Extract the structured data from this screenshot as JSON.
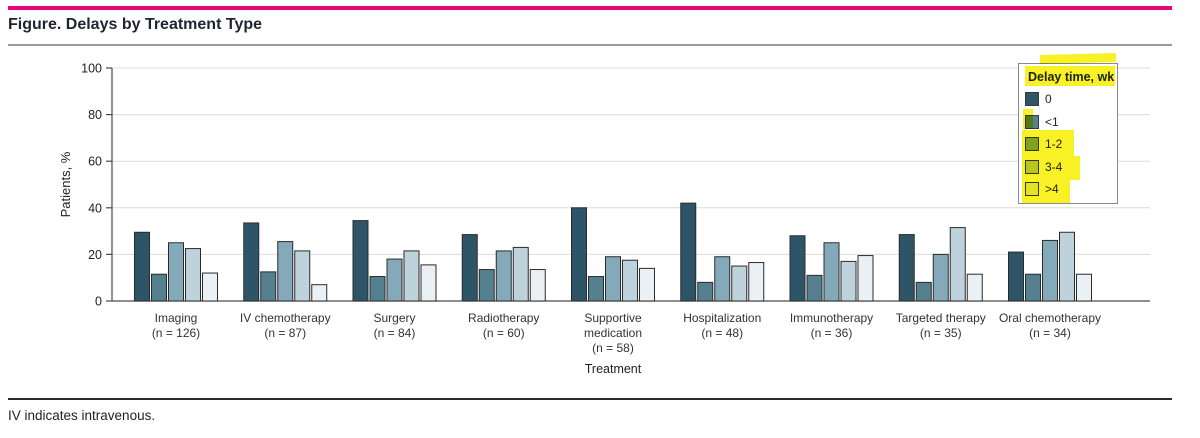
{
  "header": {
    "title": "Figure. Delays by Treatment Type"
  },
  "footer": {
    "note": "IV indicates intravenous."
  },
  "colors": {
    "accent_bar": "#E6077E",
    "bar_border": "#2B2B2B",
    "grid": "#DCDCDC",
    "axis": "#4A4A4A",
    "highlight": "#F7EE00"
  },
  "chart_data": {
    "type": "bar",
    "title": "",
    "xlabel": "Treatment",
    "ylabel": "Patients, %",
    "ylim": [
      0,
      100
    ],
    "yticks": [
      0,
      20,
      40,
      60,
      80,
      100
    ],
    "grid": true,
    "legend_title": "Delay time, wk",
    "legend_position": "top-right",
    "legend_highlighted_entries": [
      "Delay time, wk",
      "1-2",
      "3-4",
      ">4"
    ],
    "categories": [
      {
        "name_lines": [
          "Imaging"
        ],
        "n_label": "(n = 126)"
      },
      {
        "name_lines": [
          "IV chemotherapy"
        ],
        "n_label": "(n = 87)"
      },
      {
        "name_lines": [
          "Surgery"
        ],
        "n_label": "(n = 84)"
      },
      {
        "name_lines": [
          "Radiotherapy"
        ],
        "n_label": "(n = 60)"
      },
      {
        "name_lines": [
          "Supportive",
          "medication"
        ],
        "n_label": "(n = 58)"
      },
      {
        "name_lines": [
          "Hospitalization"
        ],
        "n_label": "(n = 48)"
      },
      {
        "name_lines": [
          "Immunotherapy"
        ],
        "n_label": "(n = 36)"
      },
      {
        "name_lines": [
          "Targeted therapy"
        ],
        "n_label": "(n = 35)"
      },
      {
        "name_lines": [
          "Oral chemotherapy"
        ],
        "n_label": "(n = 34)"
      }
    ],
    "series": [
      {
        "name": "0",
        "color": "#2E5567",
        "values": [
          29.5,
          33.5,
          34.5,
          28.5,
          40.0,
          42.0,
          28.0,
          28.5,
          21.0
        ]
      },
      {
        "name": "<1",
        "color": "#54808F",
        "values": [
          11.5,
          12.5,
          10.5,
          13.5,
          10.5,
          8.0,
          11.0,
          8.0,
          11.5
        ]
      },
      {
        "name": "1-2",
        "color": "#84AAB9",
        "values": [
          25.0,
          25.5,
          18.0,
          21.5,
          19.0,
          19.0,
          25.0,
          20.0,
          26.0
        ]
      },
      {
        "name": "3-4",
        "color": "#BED2DB",
        "values": [
          22.5,
          21.5,
          21.5,
          23.0,
          17.5,
          15.0,
          17.0,
          31.5,
          29.5
        ]
      },
      {
        "name": ">4",
        "color": "#EAF0F3",
        "values": [
          12.0,
          7.0,
          15.5,
          13.5,
          14.0,
          16.5,
          19.5,
          11.5,
          11.5
        ]
      }
    ]
  }
}
